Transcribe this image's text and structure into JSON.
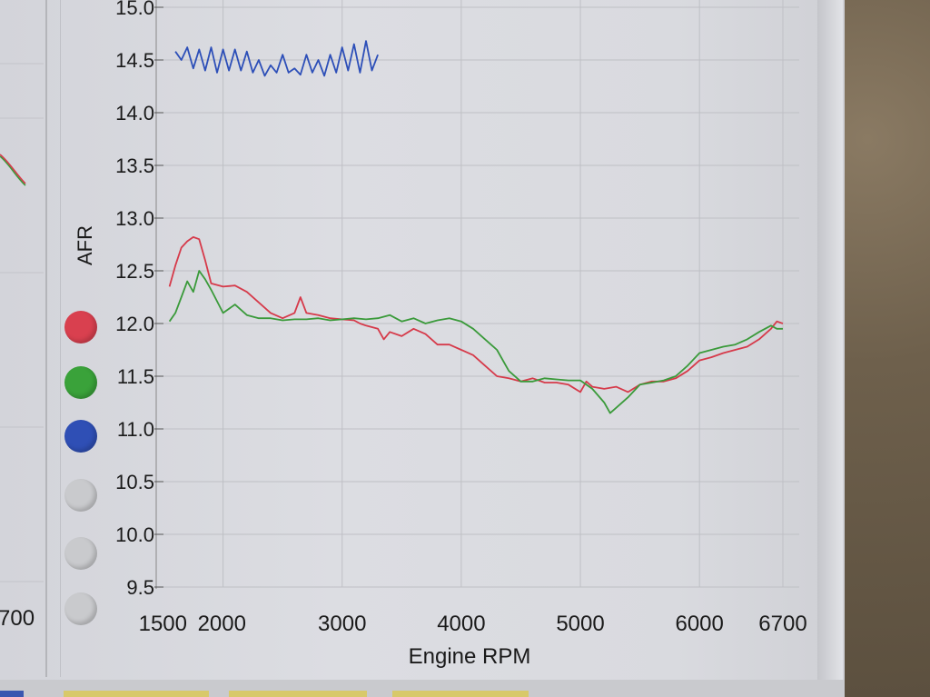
{
  "chart_data": {
    "type": "line",
    "ylabel": "AFR",
    "xlabel": "Engine RPM",
    "xlim": [
      1500,
      6700
    ],
    "ylim": [
      9.5,
      15.0
    ],
    "x_ticks": [
      1500,
      2000,
      3000,
      4000,
      5000,
      6000,
      6700
    ],
    "y_ticks": [
      "9.5",
      "10.0",
      "10.5",
      "11.0",
      "11.5",
      "12.0",
      "12.5",
      "13.0",
      "13.5",
      "14.0",
      "14.5",
      "15.0"
    ],
    "grid": true,
    "legend_placement": "left",
    "series": [
      {
        "color": "#d63a4a",
        "x": [
          1550,
          1600,
          1650,
          1700,
          1750,
          1800,
          1850,
          1900,
          2000,
          2100,
          2200,
          2300,
          2400,
          2500,
          2600,
          2650,
          2700,
          2800,
          2900,
          3000,
          3100,
          3150,
          3200,
          3300,
          3350,
          3400,
          3500,
          3600,
          3700,
          3800,
          3900,
          4000,
          4100,
          4200,
          4300,
          4400,
          4500,
          4600,
          4700,
          4800,
          4900,
          5000,
          5050,
          5100,
          5200,
          5300,
          5400,
          5500,
          5600,
          5700,
          5800,
          5900,
          6000,
          6100,
          6200,
          6300,
          6400,
          6500,
          6600,
          6650,
          6700
        ],
        "y": [
          12.35,
          12.55,
          12.72,
          12.78,
          12.82,
          12.8,
          12.6,
          12.38,
          12.35,
          12.36,
          12.3,
          12.2,
          12.1,
          12.05,
          12.1,
          12.25,
          12.1,
          12.08,
          12.05,
          12.04,
          12.03,
          12.0,
          11.98,
          11.95,
          11.85,
          11.92,
          11.88,
          11.95,
          11.9,
          11.8,
          11.8,
          11.75,
          11.7,
          11.6,
          11.5,
          11.48,
          11.45,
          11.48,
          11.44,
          11.44,
          11.42,
          11.35,
          11.45,
          11.4,
          11.38,
          11.4,
          11.35,
          11.42,
          11.45,
          11.45,
          11.48,
          11.55,
          11.65,
          11.68,
          11.72,
          11.75,
          11.78,
          11.85,
          11.95,
          12.02,
          12.0
        ]
      },
      {
        "color": "#3a9a3a",
        "x": [
          1550,
          1600,
          1650,
          1700,
          1750,
          1800,
          1850,
          1900,
          2000,
          2100,
          2200,
          2300,
          2400,
          2500,
          2600,
          2700,
          2800,
          2900,
          3000,
          3100,
          3200,
          3300,
          3400,
          3500,
          3600,
          3700,
          3800,
          3900,
          4000,
          4100,
          4200,
          4300,
          4400,
          4500,
          4600,
          4700,
          4800,
          4900,
          5000,
          5100,
          5200,
          5250,
          5300,
          5400,
          5500,
          5600,
          5700,
          5800,
          5900,
          6000,
          6100,
          6200,
          6300,
          6400,
          6500,
          6600,
          6650,
          6700
        ],
        "y": [
          12.02,
          12.1,
          12.25,
          12.4,
          12.3,
          12.5,
          12.42,
          12.32,
          12.1,
          12.18,
          12.08,
          12.05,
          12.05,
          12.03,
          12.04,
          12.04,
          12.05,
          12.03,
          12.04,
          12.05,
          12.04,
          12.05,
          12.08,
          12.02,
          12.05,
          12.0,
          12.03,
          12.05,
          12.02,
          11.95,
          11.85,
          11.75,
          11.55,
          11.45,
          11.45,
          11.48,
          11.47,
          11.46,
          11.46,
          11.38,
          11.25,
          11.15,
          11.2,
          11.3,
          11.42,
          11.44,
          11.46,
          11.5,
          11.6,
          11.72,
          11.75,
          11.78,
          11.8,
          11.85,
          11.92,
          11.98,
          11.95,
          11.95
        ]
      },
      {
        "color": "#2d4fb8",
        "x": [
          1600,
          1650,
          1700,
          1750,
          1800,
          1850,
          1900,
          1950,
          2000,
          2050,
          2100,
          2150,
          2200,
          2250,
          2300,
          2350,
          2400,
          2450,
          2500,
          2550,
          2600,
          2650,
          2700,
          2750,
          2800,
          2850,
          2900,
          2950,
          3000,
          3050,
          3100,
          3150,
          3200,
          3250,
          3300
        ],
        "y": [
          14.58,
          14.5,
          14.62,
          14.42,
          14.6,
          14.4,
          14.62,
          14.38,
          14.6,
          14.4,
          14.6,
          14.4,
          14.58,
          14.38,
          14.5,
          14.35,
          14.45,
          14.38,
          14.55,
          14.38,
          14.42,
          14.36,
          14.55,
          14.38,
          14.5,
          14.35,
          14.55,
          14.38,
          14.62,
          14.4,
          14.65,
          14.38,
          14.68,
          14.4,
          14.55
        ]
      }
    ]
  },
  "left_panel": {
    "tick_label": "700"
  },
  "legend_dots": [
    {
      "color": "#d9404f"
    },
    {
      "color": "#3aa23a"
    },
    {
      "color": "#2f4fb5"
    },
    {
      "color": "#c9cacd"
    },
    {
      "color": "#c9cacd"
    },
    {
      "color": "#c9cacd"
    }
  ]
}
